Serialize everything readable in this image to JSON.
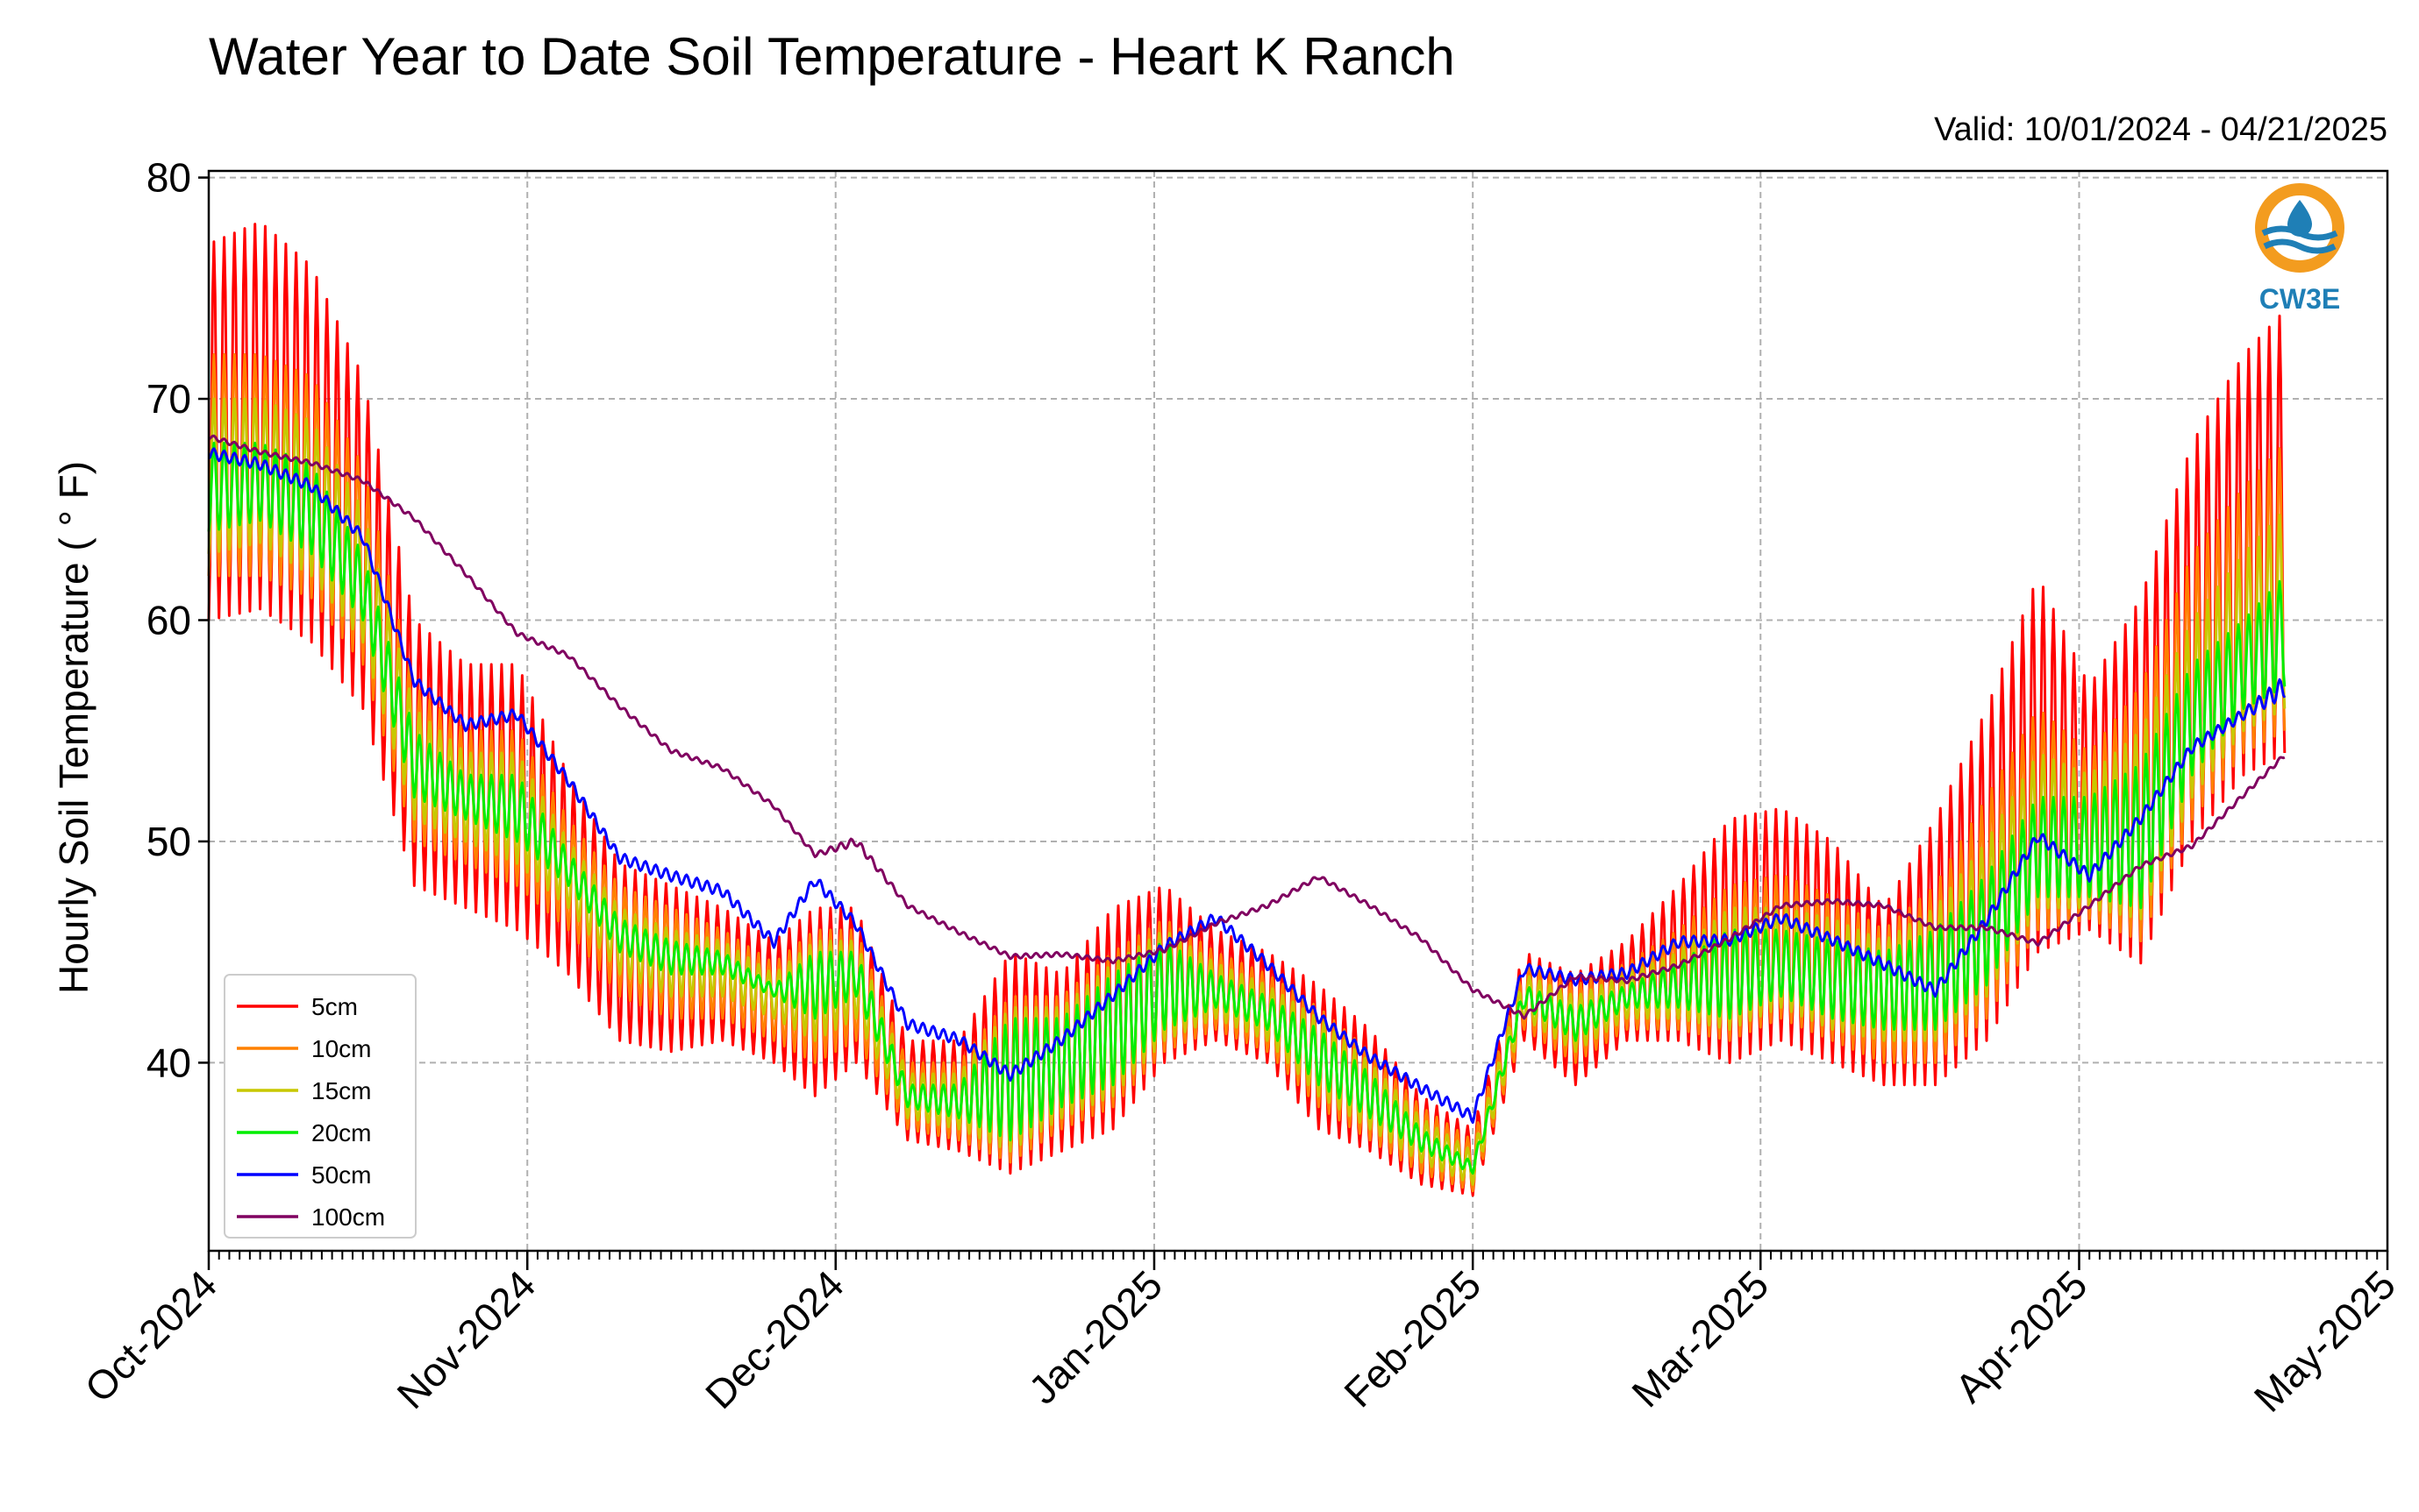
{
  "title": "Water Year to Date Soil Temperature - Heart K Ranch",
  "valid": "Valid: 10/01/2024 - 04/21/2025",
  "logo": {
    "text": "CW3E",
    "icon": "water-drop-logo-icon",
    "ring_color": "#f39c1f",
    "wave_color": "#1f7fb6",
    "text_color": "#1f7fb6"
  },
  "chart_data": {
    "type": "line",
    "title": "Water Year to Date Soil Temperature - Heart K Ranch",
    "ylabel": "Hourly Soil Temperature ( ° F)",
    "xlabel": "",
    "x_range": [
      "2024-10-01",
      "2025-05-01"
    ],
    "ylim": [
      31.5,
      80.3
    ],
    "yticks": [
      "40",
      "50",
      "60",
      "70",
      "80"
    ],
    "xticks": [
      "Oct-2024",
      "Nov-2024",
      "Dec-2024",
      "Jan-2025",
      "Feb-2025",
      "Mar-2025",
      "Apr-2025",
      "May-2025"
    ],
    "xtick_dates": [
      "2024-10-01",
      "2024-11-01",
      "2024-12-01",
      "2025-01-01",
      "2025-02-01",
      "2025-03-01",
      "2025-04-01",
      "2025-05-01"
    ],
    "grid": true,
    "legend_position": "lower-left",
    "series": [
      {
        "name": "5cm",
        "color": "#ff0000",
        "daily_amplitude_note": "largest diurnal swing",
        "x": [
          "2024-10-01",
          "2024-10-06",
          "2024-10-11",
          "2024-10-16",
          "2024-10-21",
          "2024-10-26",
          "2024-10-31",
          "2024-11-05",
          "2024-11-10",
          "2024-11-15",
          "2024-11-20",
          "2024-11-25",
          "2024-11-29",
          "2024-12-03",
          "2024-12-08",
          "2024-12-13",
          "2024-12-18",
          "2024-12-23",
          "2024-12-28",
          "2025-01-02",
          "2025-01-07",
          "2025-01-12",
          "2025-01-17",
          "2025-01-22",
          "2025-01-27",
          "2025-02-01",
          "2025-02-06",
          "2025-02-11",
          "2025-02-16",
          "2025-02-21",
          "2025-02-26",
          "2025-03-03",
          "2025-03-08",
          "2025-03-13",
          "2025-03-18",
          "2025-03-23",
          "2025-03-28",
          "2025-04-02",
          "2025-04-07",
          "2025-04-12",
          "2025-04-17",
          "2025-04-21"
        ],
        "low": [
          60.0,
          60.5,
          59.0,
          56.0,
          48.0,
          47.0,
          46.0,
          44.0,
          41.0,
          40.5,
          41.0,
          40.0,
          38.5,
          40.0,
          36.5,
          36.0,
          35.0,
          36.0,
          37.0,
          40.0,
          41.0,
          40.0,
          37.0,
          36.0,
          34.5,
          34.0,
          41.0,
          39.0,
          41.0,
          41.0,
          40.0,
          41.0,
          40.0,
          39.0,
          39.0,
          41.0,
          45.0,
          46.0,
          44.5,
          50.0,
          53.0,
          54.0
        ],
        "high": [
          77.0,
          78.0,
          76.0,
          71.0,
          60.0,
          58.0,
          58.0,
          53.0,
          49.0,
          48.0,
          47.0,
          45.5,
          47.0,
          47.0,
          41.0,
          41.0,
          45.0,
          44.0,
          47.0,
          48.0,
          46.0,
          45.0,
          43.5,
          41.5,
          38.5,
          37.0,
          45.0,
          44.0,
          45.5,
          48.0,
          51.0,
          51.5,
          50.0,
          47.0,
          51.0,
          56.0,
          62.0,
          57.0,
          61.0,
          68.0,
          72.0,
          74.0
        ]
      },
      {
        "name": "10cm",
        "color": "#ff8000",
        "x": [
          "2024-10-01",
          "2024-10-06",
          "2024-10-11",
          "2024-10-16",
          "2024-10-21",
          "2024-10-26",
          "2024-10-31",
          "2024-11-05",
          "2024-11-10",
          "2024-11-15",
          "2024-11-20",
          "2024-11-25",
          "2024-11-29",
          "2024-12-03",
          "2024-12-08",
          "2024-12-13",
          "2024-12-18",
          "2024-12-23",
          "2024-12-28",
          "2025-01-02",
          "2025-01-07",
          "2025-01-12",
          "2025-01-17",
          "2025-01-22",
          "2025-01-27",
          "2025-02-01",
          "2025-02-06",
          "2025-02-11",
          "2025-02-16",
          "2025-02-21",
          "2025-02-26",
          "2025-03-03",
          "2025-03-08",
          "2025-03-13",
          "2025-03-18",
          "2025-03-23",
          "2025-03-28",
          "2025-04-02",
          "2025-04-07",
          "2025-04-12",
          "2025-04-17",
          "2025-04-21"
        ],
        "low": [
          62.0,
          62.0,
          61.0,
          58.0,
          50.0,
          49.0,
          48.0,
          46.0,
          43.0,
          42.0,
          42.0,
          41.0,
          40.0,
          41.0,
          37.0,
          36.5,
          35.5,
          37.0,
          38.0,
          40.5,
          41.5,
          40.5,
          38.0,
          36.5,
          35.0,
          34.2,
          41.5,
          40.0,
          41.5,
          41.5,
          41.0,
          42.0,
          41.0,
          40.0,
          40.0,
          42.0,
          46.0,
          46.5,
          45.5,
          51.0,
          54.0,
          55.0
        ],
        "high": [
          72.0,
          72.0,
          71.0,
          67.0,
          57.0,
          55.0,
          55.0,
          51.0,
          48.0,
          47.0,
          46.0,
          44.5,
          46.0,
          46.0,
          40.0,
          40.0,
          43.0,
          43.0,
          45.0,
          46.5,
          45.0,
          44.0,
          42.5,
          40.5,
          38.0,
          36.5,
          44.5,
          43.5,
          44.5,
          46.0,
          48.0,
          48.5,
          47.5,
          46.0,
          48.0,
          52.0,
          56.0,
          54.0,
          57.0,
          63.0,
          66.0,
          68.0
        ]
      },
      {
        "name": "15cm",
        "color": "#c8c800",
        "x": [
          "2024-10-01",
          "2024-10-06",
          "2024-10-11",
          "2024-10-16",
          "2024-10-21",
          "2024-10-26",
          "2024-10-31",
          "2024-11-05",
          "2024-11-10",
          "2024-11-15",
          "2024-11-20",
          "2024-11-25",
          "2024-11-29",
          "2024-12-03",
          "2024-12-08",
          "2024-12-13",
          "2024-12-18",
          "2024-12-23",
          "2024-12-28",
          "2025-01-02",
          "2025-01-07",
          "2025-01-12",
          "2025-01-17",
          "2025-01-22",
          "2025-01-27",
          "2025-02-01",
          "2025-02-06",
          "2025-02-11",
          "2025-02-16",
          "2025-02-21",
          "2025-02-26",
          "2025-03-03",
          "2025-03-08",
          "2025-03-13",
          "2025-03-18",
          "2025-03-23",
          "2025-03-28",
          "2025-04-02",
          "2025-04-07",
          "2025-04-12",
          "2025-04-17",
          "2025-04-21"
        ],
        "low": [
          63.0,
          63.5,
          62.0,
          59.0,
          51.0,
          50.0,
          49.0,
          47.0,
          44.0,
          43.0,
          43.0,
          42.0,
          41.0,
          42.0,
          37.5,
          37.0,
          36.0,
          37.5,
          38.5,
          41.0,
          42.0,
          41.0,
          38.5,
          37.0,
          35.5,
          34.5,
          42.0,
          40.5,
          42.0,
          42.0,
          41.5,
          42.5,
          41.5,
          41.0,
          41.0,
          43.0,
          47.0,
          47.0,
          46.5,
          52.0,
          55.0,
          56.0
        ],
        "high": [
          70.0,
          70.0,
          69.0,
          65.0,
          56.0,
          54.0,
          54.0,
          50.0,
          47.0,
          46.0,
          45.5,
          44.0,
          45.5,
          45.5,
          39.5,
          39.5,
          42.5,
          42.5,
          44.5,
          46.0,
          44.5,
          43.5,
          42.0,
          40.0,
          37.5,
          36.0,
          44.0,
          43.0,
          44.0,
          45.0,
          47.0,
          47.0,
          46.5,
          45.5,
          47.0,
          50.0,
          54.0,
          53.0,
          55.0,
          60.0,
          63.0,
          65.0
        ]
      },
      {
        "name": "20cm",
        "color": "#00ee00",
        "x": [
          "2024-10-01",
          "2024-10-06",
          "2024-10-11",
          "2024-10-16",
          "2024-10-21",
          "2024-10-26",
          "2024-10-31",
          "2024-11-05",
          "2024-11-10",
          "2024-11-15",
          "2024-11-20",
          "2024-11-25",
          "2024-11-29",
          "2024-12-03",
          "2024-12-08",
          "2024-12-13",
          "2024-12-18",
          "2024-12-23",
          "2024-12-28",
          "2025-01-02",
          "2025-01-07",
          "2025-01-12",
          "2025-01-17",
          "2025-01-22",
          "2025-01-27",
          "2025-02-01",
          "2025-02-06",
          "2025-02-11",
          "2025-02-16",
          "2025-02-21",
          "2025-02-26",
          "2025-03-03",
          "2025-03-08",
          "2025-03-13",
          "2025-03-18",
          "2025-03-23",
          "2025-03-28",
          "2025-04-02",
          "2025-04-07",
          "2025-04-12",
          "2025-04-17",
          "2025-04-21"
        ],
        "low": [
          64.0,
          64.5,
          63.0,
          60.0,
          52.0,
          51.0,
          50.0,
          48.0,
          45.0,
          44.0,
          44.0,
          43.0,
          42.0,
          43.0,
          38.0,
          37.5,
          36.5,
          38.0,
          39.0,
          41.5,
          42.5,
          41.5,
          39.0,
          37.5,
          36.0,
          35.0,
          42.5,
          41.0,
          42.5,
          42.5,
          42.0,
          43.0,
          42.0,
          41.5,
          41.5,
          43.5,
          47.5,
          47.5,
          47.0,
          53.0,
          56.0,
          57.0
        ],
        "high": [
          68.0,
          68.0,
          67.0,
          63.0,
          55.0,
          53.0,
          53.0,
          49.5,
          46.5,
          45.5,
          45.0,
          43.5,
          45.0,
          45.0,
          39.0,
          39.0,
          42.0,
          42.0,
          44.0,
          45.5,
          44.0,
          43.0,
          41.5,
          39.5,
          37.0,
          35.5,
          43.5,
          42.5,
          43.5,
          44.5,
          46.0,
          46.0,
          45.5,
          45.0,
          46.0,
          48.5,
          52.0,
          52.0,
          53.5,
          58.0,
          60.0,
          62.0
        ]
      },
      {
        "name": "50cm",
        "color": "#0000ff",
        "x": [
          "2024-10-01",
          "2024-10-06",
          "2024-10-11",
          "2024-10-16",
          "2024-10-21",
          "2024-10-26",
          "2024-10-31",
          "2024-11-05",
          "2024-11-10",
          "2024-11-15",
          "2024-11-20",
          "2024-11-25",
          "2024-11-29",
          "2024-12-03",
          "2024-12-08",
          "2024-12-13",
          "2024-12-18",
          "2024-12-23",
          "2024-12-28",
          "2025-01-02",
          "2025-01-07",
          "2025-01-12",
          "2025-01-17",
          "2025-01-22",
          "2025-01-27",
          "2025-02-01",
          "2025-02-06",
          "2025-02-11",
          "2025-02-16",
          "2025-02-21",
          "2025-02-26",
          "2025-03-03",
          "2025-03-08",
          "2025-03-13",
          "2025-03-18",
          "2025-03-23",
          "2025-03-28",
          "2025-04-02",
          "2025-04-07",
          "2025-04-12",
          "2025-04-17",
          "2025-04-21"
        ],
        "low": [
          67.3,
          66.8,
          65.8,
          63.5,
          57.0,
          55.0,
          55.5,
          52.5,
          49.0,
          48.2,
          47.5,
          45.2,
          48.0,
          46.0,
          41.5,
          40.8,
          39.2,
          40.8,
          42.8,
          45.0,
          46.3,
          44.2,
          41.8,
          40.0,
          38.6,
          37.3,
          44.0,
          43.5,
          43.8,
          45.2,
          45.3,
          46.3,
          45.3,
          44.2,
          43.0,
          46.2,
          50.0,
          48.2,
          50.8,
          54.0,
          55.5,
          56.5
        ],
        "high": [
          67.8,
          67.3,
          66.3,
          64.0,
          57.5,
          55.5,
          56.0,
          53.0,
          49.5,
          48.7,
          48.0,
          45.7,
          48.5,
          46.5,
          42.0,
          41.3,
          39.7,
          41.3,
          43.3,
          45.5,
          46.8,
          44.7,
          42.3,
          40.5,
          39.1,
          37.8,
          44.5,
          44.0,
          44.3,
          45.7,
          45.8,
          46.8,
          45.8,
          44.7,
          43.5,
          46.7,
          50.5,
          48.7,
          51.3,
          54.5,
          56.0,
          57.5
        ]
      },
      {
        "name": "100cm",
        "color": "#800060",
        "x": [
          "2024-10-01",
          "2024-10-06",
          "2024-10-11",
          "2024-10-16",
          "2024-10-21",
          "2024-10-26",
          "2024-10-31",
          "2024-11-05",
          "2024-11-10",
          "2024-11-15",
          "2024-11-20",
          "2024-11-25",
          "2024-11-29",
          "2024-12-03",
          "2024-12-08",
          "2024-12-13",
          "2024-12-18",
          "2024-12-23",
          "2024-12-28",
          "2025-01-02",
          "2025-01-07",
          "2025-01-12",
          "2025-01-17",
          "2025-01-22",
          "2025-01-27",
          "2025-02-01",
          "2025-02-06",
          "2025-02-11",
          "2025-02-16",
          "2025-02-21",
          "2025-02-26",
          "2025-03-03",
          "2025-03-08",
          "2025-03-13",
          "2025-03-18",
          "2025-03-23",
          "2025-03-28",
          "2025-04-02",
          "2025-04-07",
          "2025-04-12",
          "2025-04-17",
          "2025-04-21"
        ],
        "low": [
          68.2,
          67.5,
          67.0,
          66.2,
          64.5,
          62.0,
          59.3,
          58.3,
          56.0,
          54.0,
          53.2,
          51.5,
          49.3,
          49.8,
          47.0,
          45.8,
          44.7,
          44.8,
          44.5,
          45.0,
          46.2,
          47.0,
          48.3,
          47.0,
          45.5,
          43.2,
          42.0,
          43.8,
          43.6,
          44.3,
          45.5,
          47.0,
          47.2,
          47.0,
          46.0,
          46.0,
          45.3,
          47.0,
          48.8,
          49.7,
          52.0,
          53.8
        ],
        "high": [
          68.4,
          67.7,
          67.2,
          66.4,
          64.7,
          62.2,
          59.5,
          58.5,
          56.2,
          54.2,
          53.4,
          51.7,
          49.5,
          50.2,
          47.2,
          46.0,
          44.9,
          45.0,
          44.7,
          45.2,
          46.4,
          47.2,
          48.5,
          47.2,
          45.7,
          43.4,
          42.2,
          44.0,
          43.8,
          44.5,
          45.7,
          47.2,
          47.4,
          47.2,
          46.2,
          46.2,
          45.5,
          47.2,
          49.0,
          49.9,
          52.2,
          54.0
        ]
      }
    ]
  }
}
